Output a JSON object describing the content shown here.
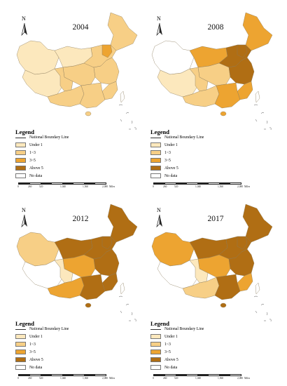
{
  "maps": [
    {
      "year": "2004",
      "panel": "top-left",
      "levels": {
        "nw": "under-1",
        "tibet": "under-1",
        "inner": "under-1",
        "northeast": "1-3",
        "north": "1-3",
        "central": "1-3",
        "southwest": "1-3",
        "east": "1-3",
        "south": "1-3",
        "beijing": "3-5",
        "coast": "1-3",
        "taiwan": "no-data",
        "sichuan": "1-3"
      }
    },
    {
      "year": "2008",
      "panel": "top-right",
      "levels": {
        "nw": "no-data",
        "tibet": "under-1",
        "inner": "3-5",
        "northeast": "3-5",
        "north": "above-5",
        "central": "1-3",
        "southwest": "1-3",
        "east": "above-5",
        "south": "3-5",
        "beijing": "above-5",
        "coast": "3-5",
        "taiwan": "no-data",
        "sichuan": "1-3"
      }
    },
    {
      "year": "2012",
      "panel": "bottom-left",
      "levels": {
        "nw": "1-3",
        "tibet": "no-data",
        "inner": "above-5",
        "northeast": "above-5",
        "north": "above-5",
        "central": "3-5",
        "southwest": "3-5",
        "east": "above-5",
        "south": "above-5",
        "beijing": "above-5",
        "coast": "above-5",
        "taiwan": "no-data",
        "sichuan": "under-1"
      }
    },
    {
      "year": "2017",
      "panel": "bottom-right",
      "levels": {
        "nw": "3-5",
        "tibet": "no-data",
        "inner": "above-5",
        "northeast": "above-5",
        "north": "above-5",
        "central": "3-5",
        "southwest": "1-3",
        "east": "above-5",
        "south": "above-5",
        "beijing": "above-5",
        "coast": "3-5",
        "taiwan": "no-data",
        "sichuan": "under-1"
      }
    }
  ],
  "compass_label": "N",
  "legend": {
    "title": "Legend",
    "boundary_label": "National Boundary Line",
    "classes": [
      {
        "key": "under-1",
        "label": "Under 1",
        "color": "#fce8bd"
      },
      {
        "key": "1-3",
        "label": "1~3",
        "color": "#f7cf86"
      },
      {
        "key": "3-5",
        "label": "3~5",
        "color": "#eda431"
      },
      {
        "key": "above-5",
        "label": "Above 5",
        "color": "#b06e14"
      },
      {
        "key": "no-data",
        "label": "No data",
        "color": "#ffffff"
      }
    ]
  },
  "scale_bar": {
    "labels": [
      "0",
      "260",
      "520",
      "1,040",
      "1,560",
      "2,080"
    ],
    "unit": "Miles"
  }
}
